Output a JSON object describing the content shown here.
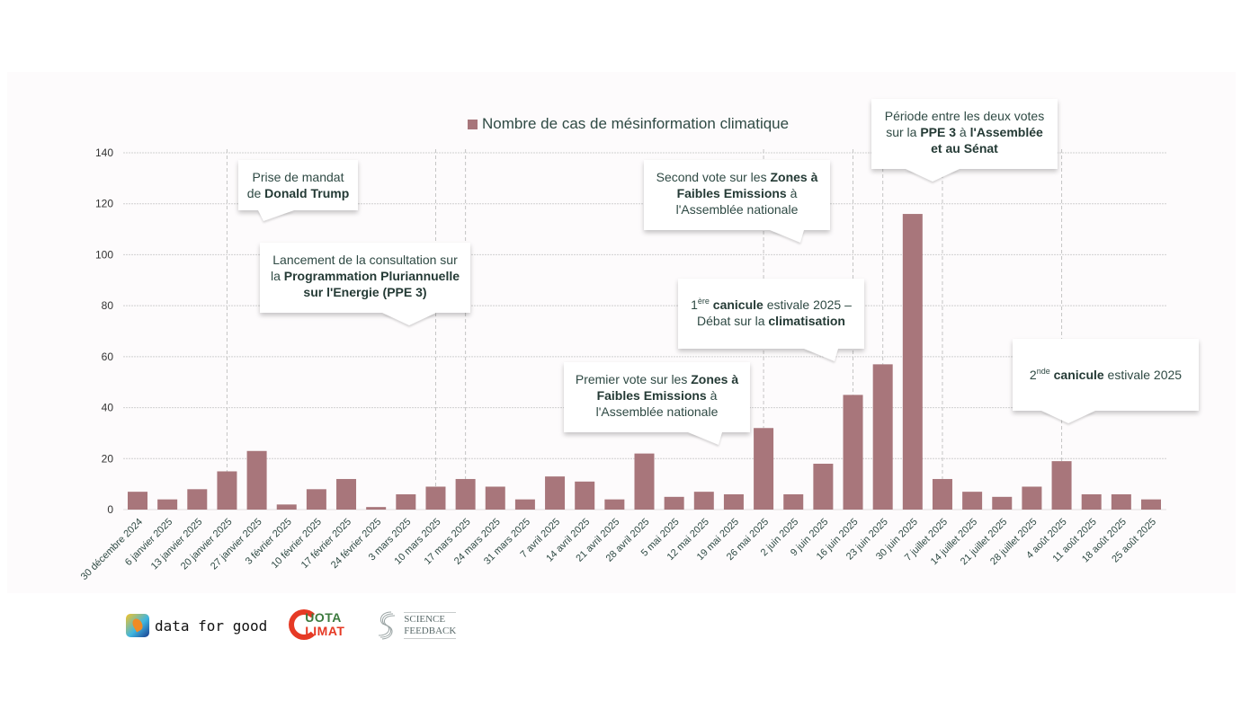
{
  "legend": {
    "label": "Nombre de cas de mésinformation climatique",
    "color": "#a8767b"
  },
  "colors": {
    "bar": "#a8767b",
    "text": "#2f4a44",
    "grid": "#d0d0d0",
    "panel": "#fdfbfc"
  },
  "chart_data": {
    "type": "bar",
    "title": "",
    "xlabel": "",
    "ylabel": "",
    "ylim": [
      0,
      140
    ],
    "yticks": [
      0,
      20,
      40,
      60,
      80,
      100,
      120,
      140
    ],
    "grid": true,
    "legend_position": "top-center",
    "categories": [
      "30 décembre 2024",
      "6 janvier 2025",
      "13 janvier 2025",
      "20 janvier 2025",
      "27 janvier 2025",
      "3 février 2025",
      "10 février 2025",
      "17 février 2025",
      "24 février 2025",
      "3 mars 2025",
      "10 mars 2025",
      "17 mars 2025",
      "24 mars 2025",
      "31 mars 2025",
      "7 avril 2025",
      "14 avril 2025",
      "21 avril 2025",
      "28 avril 2025",
      "5 mai 2025",
      "12 mai 2025",
      "19 mai 2025",
      "26 mai 2025",
      "2 juin 2025",
      "9 juin 2025",
      "16 juin 2025",
      "23 juin 2025",
      "30 juin 2025",
      "7 juillet 2025",
      "14 juillet 2025",
      "21 juillet 2025",
      "28 juillet 2025",
      "4 août 2025",
      "11 août 2025",
      "18 août 2025",
      "25 août 2025"
    ],
    "series": [
      {
        "name": "Nombre de cas de mésinformation climatique",
        "values": [
          7,
          4,
          8,
          15,
          23,
          2,
          8,
          12,
          1,
          6,
          9,
          12,
          9,
          4,
          13,
          11,
          4,
          22,
          5,
          7,
          6,
          32,
          6,
          18,
          45,
          57,
          116,
          12,
          7,
          5,
          9,
          19,
          6,
          6,
          4
        ]
      }
    ],
    "event_markers": [
      "20 janvier 2025",
      "10 mars 2025",
      "17 mars 2025",
      "26 mai 2025",
      "16 juin 2025",
      "23 juin 2025",
      "7 juillet 2025",
      "4 août 2025"
    ],
    "annotations": [
      {
        "id": "trump",
        "parts": [
          [
            "Prise de mandat",
            false
          ],
          [
            "\n",
            false
          ],
          [
            "de ",
            false
          ],
          [
            "Donald Trump",
            true
          ]
        ]
      },
      {
        "id": "ppe",
        "parts": [
          [
            "Lancement de la consultation sur",
            false
          ],
          [
            "\n",
            false
          ],
          [
            "la ",
            false
          ],
          [
            "Programmation Pluriannuelle",
            true
          ],
          [
            "\n",
            false
          ],
          [
            "sur l'Energie (PPE 3)",
            true
          ]
        ]
      },
      {
        "id": "zfe1",
        "parts": [
          [
            "Premier vote sur les ",
            false
          ],
          [
            "Zones à",
            true
          ],
          [
            "\n",
            false
          ],
          [
            "Faibles Emissions",
            true
          ],
          [
            " à",
            false
          ],
          [
            "\n",
            false
          ],
          [
            "l'Assemblée nationale",
            false
          ]
        ]
      },
      {
        "id": "zfe2",
        "parts": [
          [
            "Second vote sur les ",
            false
          ],
          [
            "Zones à",
            true
          ],
          [
            "\n",
            false
          ],
          [
            "Faibles Emissions",
            true
          ],
          [
            " à",
            false
          ],
          [
            "\n",
            false
          ],
          [
            "l'Assemblée nationale",
            false
          ]
        ]
      },
      {
        "id": "canicule1",
        "parts": [
          [
            "1",
            false
          ],
          [
            "ère",
            "sup"
          ],
          [
            " ",
            false
          ],
          [
            "canicule",
            true
          ],
          [
            " estivale 2025 –",
            false
          ],
          [
            "\n",
            false
          ],
          [
            "Débat sur la ",
            false
          ],
          [
            "climatisation",
            true
          ]
        ]
      },
      {
        "id": "ppe-votes",
        "parts": [
          [
            "Période entre les deux votes",
            false
          ],
          [
            "\n",
            false
          ],
          [
            "sur la ",
            false
          ],
          [
            "PPE 3",
            true
          ],
          [
            " à ",
            false
          ],
          [
            "l'Assemblée",
            true
          ],
          [
            "\n",
            false
          ],
          [
            "et au Sénat",
            true
          ]
        ]
      },
      {
        "id": "canicule2",
        "parts": [
          [
            "2",
            false
          ],
          [
            "nde",
            "sup"
          ],
          [
            " ",
            false
          ],
          [
            "canicule",
            true
          ],
          [
            " estivale 2025",
            false
          ]
        ]
      }
    ]
  },
  "logos": {
    "data_for_good": "data for good",
    "quota_climat_line1": "UOTA",
    "quota_climat_line2": "LIMAT",
    "science_feedback_line1": "SCIENCE",
    "science_feedback_line2": "FEEDBACK"
  }
}
